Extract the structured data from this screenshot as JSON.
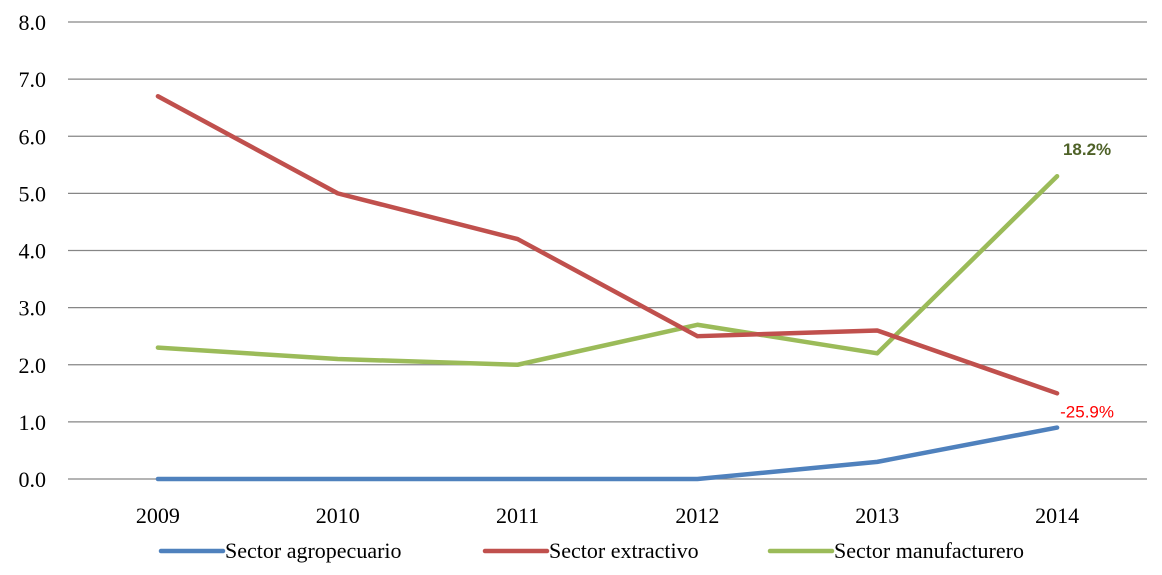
{
  "chart_data": {
    "type": "line",
    "title": "",
    "xlabel": "",
    "ylabel": "",
    "categories": [
      "2009",
      "2010",
      "2011",
      "2012",
      "2013",
      "2014"
    ],
    "ylim": [
      0,
      8
    ],
    "yticks": [
      "0.0",
      "1.0",
      "2.0",
      "3.0",
      "4.0",
      "5.0",
      "6.0",
      "7.0",
      "8.0"
    ],
    "grid": true,
    "legend": "bottom",
    "series": [
      {
        "name": "Sector agropecuario",
        "color": "#4F81BD",
        "values": [
          0,
          0,
          0,
          0,
          0.3,
          0.9
        ]
      },
      {
        "name": "Sector extractivo",
        "color": "#C0504D",
        "values": [
          6.7,
          5.0,
          4.2,
          2.5,
          2.6,
          1.5
        ]
      },
      {
        "name": "Sector manufacturero",
        "color": "#9BBB59",
        "values": [
          2.3,
          2.1,
          2.0,
          2.7,
          2.2,
          5.3
        ]
      }
    ],
    "annotations": [
      {
        "text": "18.2%",
        "series": 2,
        "index": 5,
        "color": "#4F6228",
        "bold": true
      },
      {
        "text": "-25.9%",
        "series": 1,
        "index": 5,
        "color": "#FF0000",
        "bold": false
      }
    ]
  }
}
